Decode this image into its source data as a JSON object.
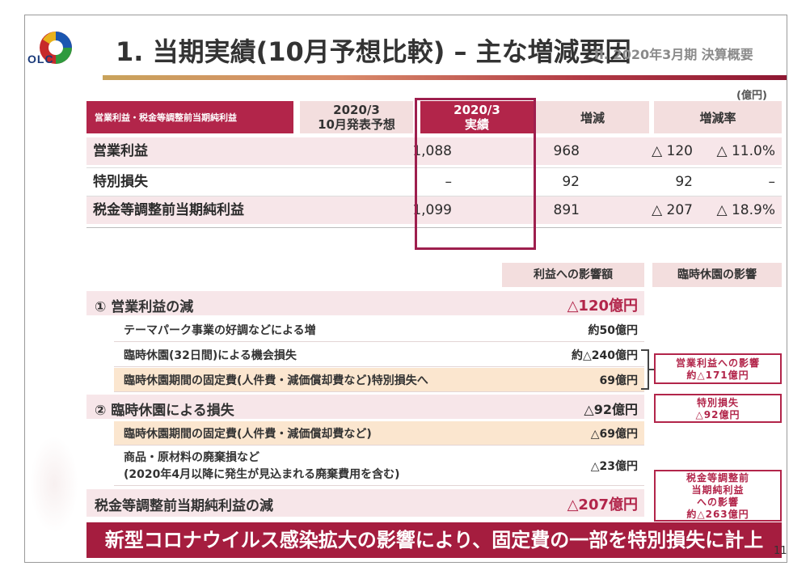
{
  "header": {
    "logo_text": "OLC",
    "title": "1. 当期実績(10月予想比較) – 主な増減要因",
    "subtitle": "II. 2020年3月期 決算概要",
    "unit": "(億円)"
  },
  "table": {
    "header_label": "営業利益・税金等調整前当期純利益",
    "col_forecast_line1": "2020/3",
    "col_forecast_line2": "10月発表予想",
    "col_actual_line1": "2020/3",
    "col_actual_line2": "実績",
    "col_diff": "増減",
    "col_rate": "増減率",
    "rows": [
      {
        "label": "営業利益",
        "forecast": "1,088",
        "actual": "968",
        "diff": "△ 120",
        "rate": "△ 11.0%"
      },
      {
        "label": "特別損失",
        "forecast": "–",
        "actual": "92",
        "diff": "92",
        "rate": "–"
      },
      {
        "label": "税金等調整前当期純利益",
        "forecast": "1,099",
        "actual": "891",
        "diff": "△ 207",
        "rate": "△ 18.9%"
      }
    ]
  },
  "breakdown": {
    "col_impact": "利益への影響額",
    "col_closure": "臨時休園の影響",
    "sec1_label": "① 営業利益の減",
    "sec1_value": "△120億円",
    "sec1_items": [
      {
        "label": "テーマパーク事業の好調などによる増",
        "value": "約50億円"
      },
      {
        "label": "臨時休園(32日間)による機会損失",
        "value": "約△240億円"
      },
      {
        "label": "臨時休園期間の固定費(人件費・減価償却費など)特別損失へ",
        "value": "69億円"
      }
    ],
    "sec2_label": "② 臨時休園による損失",
    "sec2_value": "△92億円",
    "sec2_item1_label": "臨時休園期間の固定費(人件費・減価償却費など)",
    "sec2_item1_value": "△69億円",
    "sec2_item2_line1": "商品・原材料の廃棄損など",
    "sec2_item2_line2": "(2020年4月以降に発生が見込まれる廃棄費用を含む)",
    "sec2_item2_value": "△23億円",
    "total_label": "税金等調整前当期純利益の減",
    "total_value": "△207億円",
    "box1_line1": "営業利益への影響",
    "box1_line2": "約△171億円",
    "box2_line1": "特別損失",
    "box2_line2": "△92億円",
    "box3_line1": "税金等調整前",
    "box3_line2": "当期純利益",
    "box3_line3": "への影響",
    "box3_line4": "約△263億円"
  },
  "footer": {
    "banner": "新型コロナウイルス感染拡大の影響により、固定費の一部を特別損失に計上",
    "page_number": "11"
  },
  "colors": {
    "accent": "#a51d3f",
    "highlight_pink": "#f7e6e9",
    "highlight_orange": "#fbe6cf"
  }
}
